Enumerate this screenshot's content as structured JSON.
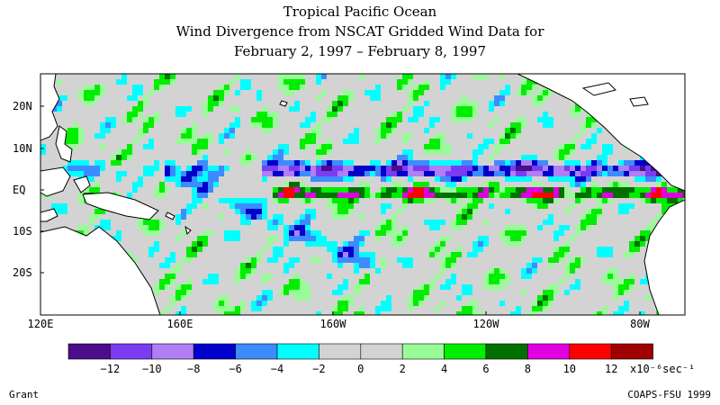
{
  "title": {
    "line1": "Tropical Pacific Ocean",
    "line2": "Wind Divergence from NSCAT Gridded Wind Data for",
    "line3": "February 2, 1997 – February 8, 1997"
  },
  "map": {
    "lat_labels": [
      "20N",
      "10N",
      "EQ",
      "10S",
      "20S"
    ],
    "lon_labels": [
      "120E",
      "160E",
      "160W",
      "120W",
      "80W"
    ]
  },
  "colorbar": {
    "colors": [
      "#4b0d8a",
      "#7a3cf0",
      "#b07ef5",
      "#0000cc",
      "#3c8cff",
      "#00ffff",
      "#d3d3d3",
      "#d3d3d3",
      "#98fb98",
      "#00ee00",
      "#007000",
      "#e000e0",
      "#ff0000",
      "#a00000"
    ],
    "tick_labels": [
      "-12",
      "-10",
      "-8",
      "-6",
      "-4",
      "-2",
      "0",
      "2",
      "4",
      "6",
      "8",
      "10",
      "12"
    ],
    "units": "x10⁻⁶sec⁻¹"
  },
  "footer": {
    "left": "Grant",
    "right": "COAPS-FSU 1999"
  }
}
